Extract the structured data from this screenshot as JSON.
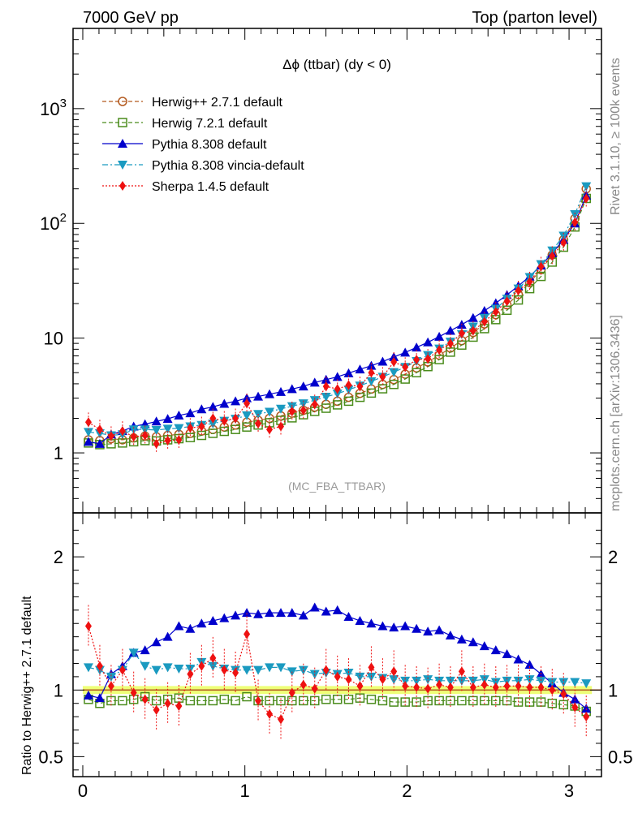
{
  "header": {
    "left": "7000 GeV pp",
    "right": "Top (parton level)"
  },
  "side_labels": {
    "rivet": "Rivet 3.1.10, ≥ 100k events",
    "mcplots": "mcplots.cern.ch [arXiv:1306.3436]"
  },
  "annotation": "(MC_FBA_TTBAR)",
  "chart_data": [
    {
      "type": "line",
      "title": "Δϕ (ttbar) (dy < 0)",
      "yscale": "log",
      "xlim": [
        -0.06,
        3.2
      ],
      "ylim": [
        0.3,
        5000
      ],
      "y_ticks": [
        {
          "value": 1,
          "label": "1"
        },
        {
          "value": 10,
          "label": "10"
        },
        {
          "value": 100,
          "label": "10²"
        },
        {
          "value": 1000,
          "label": "10³"
        }
      ],
      "legend_position": "top-left",
      "x": [
        0.035,
        0.105,
        0.175,
        0.245,
        0.314,
        0.384,
        0.454,
        0.524,
        0.593,
        0.663,
        0.733,
        0.803,
        0.873,
        0.942,
        1.012,
        1.082,
        1.152,
        1.222,
        1.291,
        1.361,
        1.431,
        1.501,
        1.571,
        1.64,
        1.71,
        1.78,
        1.85,
        1.919,
        1.989,
        2.059,
        2.129,
        2.199,
        2.268,
        2.338,
        2.408,
        2.478,
        2.548,
        2.617,
        2.687,
        2.757,
        2.827,
        2.896,
        2.966,
        3.036,
        3.106
      ],
      "series": [
        {
          "name": "Herwig++ 2.7.1 default",
          "color": "#b35a1f",
          "marker": "open-circle",
          "linestyle": "dashed",
          "values": [
            1.3,
            1.28,
            1.33,
            1.3,
            1.35,
            1.4,
            1.38,
            1.42,
            1.45,
            1.48,
            1.55,
            1.6,
            1.68,
            1.75,
            1.85,
            1.92,
            2.0,
            2.1,
            2.22,
            2.35,
            2.5,
            2.65,
            2.82,
            3.05,
            3.3,
            3.6,
            3.95,
            4.35,
            4.85,
            5.5,
            6.2,
            7.1,
            8.2,
            9.5,
            11.2,
            13.3,
            16.0,
            19.5,
            24.0,
            30.5,
            39.5,
            53.0,
            72.0,
            110.0,
            200.0
          ]
        },
        {
          "name": "Herwig 7.2.1 default",
          "color": "#4a8c1c",
          "marker": "open-square",
          "linestyle": "dashed",
          "values": [
            1.22,
            1.18,
            1.2,
            1.22,
            1.25,
            1.28,
            1.27,
            1.3,
            1.33,
            1.36,
            1.42,
            1.48,
            1.54,
            1.6,
            1.68,
            1.75,
            1.83,
            1.92,
            2.02,
            2.15,
            2.3,
            2.45,
            2.62,
            2.82,
            3.05,
            3.32,
            3.62,
            3.95,
            4.4,
            5.0,
            5.65,
            6.5,
            7.55,
            8.7,
            10.2,
            12.1,
            14.5,
            17.5,
            21.5,
            27.0,
            34.5,
            46.0,
            62.0,
            93.0,
            165.0
          ]
        },
        {
          "name": "Pythia 8.308 default",
          "color": "#0000cc",
          "marker": "filled-triangle-up",
          "linestyle": "solid",
          "values": [
            1.25,
            1.2,
            1.45,
            1.55,
            1.7,
            1.78,
            1.88,
            1.98,
            2.12,
            2.22,
            2.4,
            2.52,
            2.68,
            2.82,
            3.0,
            3.1,
            3.25,
            3.4,
            3.6,
            3.8,
            4.1,
            4.35,
            4.6,
            4.95,
            5.35,
            5.75,
            6.25,
            6.85,
            7.5,
            8.3,
            9.2,
            10.3,
            11.6,
            13.1,
            15.0,
            17.3,
            20.2,
            23.8,
            28.5,
            34.5,
            43.0,
            55.0,
            72.0,
            100.0,
            175.0
          ]
        },
        {
          "name": "Pythia 8.308 vincia-default",
          "color": "#1a9ac0",
          "marker": "filled-triangle-down",
          "linestyle": "dashdot",
          "values": [
            1.52,
            1.48,
            1.42,
            1.45,
            1.6,
            1.6,
            1.58,
            1.62,
            1.64,
            1.7,
            1.75,
            1.8,
            1.9,
            1.98,
            2.12,
            2.18,
            2.28,
            2.42,
            2.55,
            2.7,
            2.88,
            3.08,
            3.28,
            3.55,
            3.85,
            4.2,
            4.6,
            5.05,
            5.6,
            6.3,
            7.1,
            8.1,
            9.3,
            10.8,
            12.6,
            15.0,
            18.0,
            22.0,
            27.0,
            34.0,
            44.0,
            58.0,
            78.0,
            120.0,
            210.0
          ]
        },
        {
          "name": "Sherpa 1.4.5 default",
          "color": "#ee1111",
          "marker": "filled-diamond",
          "linestyle": "dotted",
          "values": [
            1.85,
            1.6,
            1.4,
            1.55,
            1.38,
            1.42,
            1.2,
            1.28,
            1.3,
            1.65,
            1.7,
            2.0,
            1.9,
            2.0,
            2.7,
            1.8,
            1.6,
            1.7,
            2.3,
            2.35,
            2.65,
            3.8,
            3.6,
            3.9,
            3.8,
            5.0,
            4.6,
            6.2,
            5.6,
            6.5,
            6.6,
            7.9,
            9.0,
            11.0,
            11.6,
            13.9,
            17.0,
            21.0,
            26.0,
            31.0,
            42.0,
            52.0,
            68.0,
            102.0,
            165.0
          ]
        }
      ]
    },
    {
      "type": "line",
      "ylabel": "Ratio to Herwig++ 2.7.1 default",
      "xlim": [
        -0.06,
        3.2
      ],
      "ylim": [
        0.35,
        2.33
      ],
      "x_ticks": [
        0,
        1,
        2,
        3
      ],
      "y_ticks": [
        0.5,
        1,
        2
      ],
      "reference_band": {
        "low": 0.97,
        "high": 1.03,
        "color": "#eeff77"
      },
      "x": [
        0.035,
        0.105,
        0.175,
        0.245,
        0.314,
        0.384,
        0.454,
        0.524,
        0.593,
        0.663,
        0.733,
        0.803,
        0.873,
        0.942,
        1.012,
        1.082,
        1.152,
        1.222,
        1.291,
        1.361,
        1.431,
        1.501,
        1.571,
        1.64,
        1.71,
        1.78,
        1.85,
        1.919,
        1.989,
        2.059,
        2.129,
        2.199,
        2.268,
        2.338,
        2.408,
        2.478,
        2.548,
        2.617,
        2.687,
        2.757,
        2.827,
        2.896,
        2.966,
        3.036,
        3.106
      ],
      "series": [
        {
          "name": "Herwig 7.2.1 default",
          "values": [
            0.93,
            0.9,
            0.92,
            0.92,
            0.93,
            0.95,
            0.92,
            0.93,
            0.94,
            0.92,
            0.92,
            0.92,
            0.93,
            0.92,
            0.95,
            0.92,
            0.92,
            0.92,
            0.92,
            0.92,
            0.92,
            0.93,
            0.93,
            0.93,
            0.94,
            0.93,
            0.92,
            0.91,
            0.91,
            0.91,
            0.92,
            0.92,
            0.92,
            0.92,
            0.92,
            0.92,
            0.92,
            0.92,
            0.91,
            0.91,
            0.91,
            0.9,
            0.89,
            0.88,
            0.84
          ]
        },
        {
          "name": "Pythia 8.308 default",
          "values": [
            0.96,
            0.94,
            1.12,
            1.18,
            1.28,
            1.3,
            1.36,
            1.4,
            1.48,
            1.46,
            1.5,
            1.52,
            1.54,
            1.56,
            1.58,
            1.57,
            1.58,
            1.58,
            1.58,
            1.56,
            1.62,
            1.59,
            1.6,
            1.55,
            1.52,
            1.5,
            1.48,
            1.47,
            1.48,
            1.46,
            1.44,
            1.45,
            1.41,
            1.38,
            1.36,
            1.33,
            1.3,
            1.27,
            1.23,
            1.19,
            1.12,
            1.05,
            0.98,
            0.93,
            0.86
          ]
        },
        {
          "name": "Pythia 8.308 vincia-default",
          "values": [
            1.17,
            1.15,
            1.1,
            1.15,
            1.28,
            1.18,
            1.15,
            1.17,
            1.16,
            1.16,
            1.21,
            1.18,
            1.16,
            1.15,
            1.15,
            1.15,
            1.17,
            1.17,
            1.14,
            1.15,
            1.12,
            1.13,
            1.12,
            1.13,
            1.1,
            1.1,
            1.09,
            1.08,
            1.07,
            1.07,
            1.08,
            1.07,
            1.07,
            1.07,
            1.07,
            1.08,
            1.06,
            1.07,
            1.07,
            1.08,
            1.07,
            1.06,
            1.06,
            1.06,
            1.05
          ]
        },
        {
          "name": "Sherpa 1.4.5 default",
          "values": [
            1.48,
            1.18,
            1.03,
            1.15,
            0.98,
            0.93,
            0.85,
            0.9,
            0.88,
            1.12,
            1.18,
            1.24,
            1.15,
            1.13,
            1.42,
            0.92,
            0.82,
            0.78,
            0.98,
            1.04,
            1.01,
            1.15,
            1.1,
            1.08,
            1.03,
            1.17,
            1.08,
            1.14,
            1.03,
            1.02,
            1.01,
            1.04,
            1.02,
            1.14,
            1.02,
            1.04,
            1.02,
            1.03,
            1.03,
            1.02,
            1.02,
            1.0,
            0.97,
            0.87,
            0.8
          ]
        }
      ]
    }
  ]
}
